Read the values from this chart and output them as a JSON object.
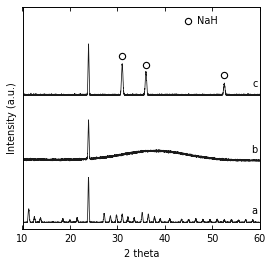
{
  "xmin": 10,
  "xmax": 60,
  "xlabel": "2 theta",
  "ylabel": "Intensity (a.u.)",
  "labels": [
    "a",
    "b",
    "c"
  ],
  "offsets": [
    0.0,
    0.3,
    0.62
  ],
  "nah_peaks": [
    31.0,
    36.0,
    52.5
  ],
  "nah_label": "NaH",
  "line_color": "#1a1a1a",
  "background_color": "#ffffff",
  "axis_fontsize": 7,
  "tick_fontsize": 7,
  "label_fontsize": 7,
  "scale_a": 0.22,
  "scale_b": 0.2,
  "scale_c": 0.25
}
